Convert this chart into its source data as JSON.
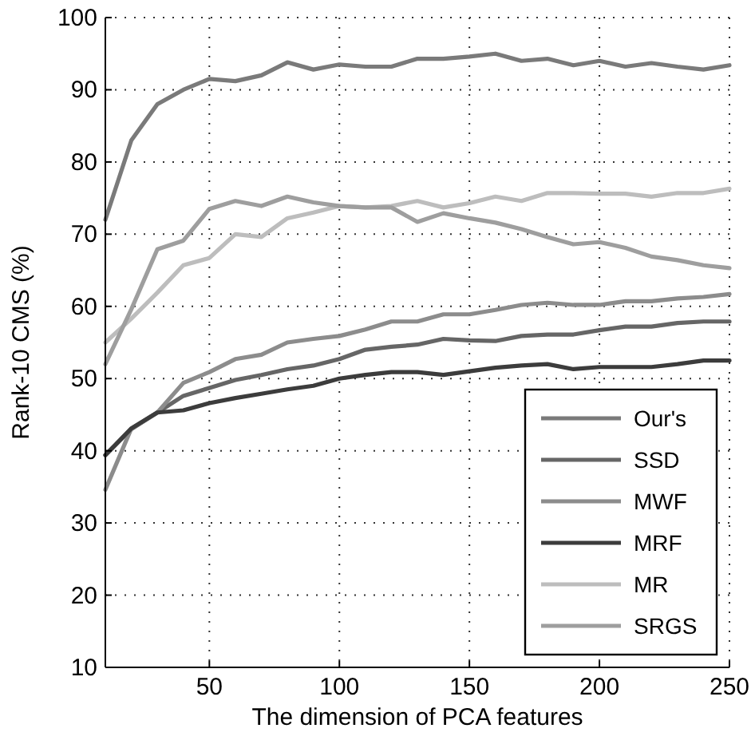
{
  "chart_data": {
    "type": "line",
    "xlabel": "The dimension of PCA features",
    "ylabel": "Rank-10 CMS (%)",
    "x": [
      10,
      20,
      30,
      40,
      50,
      60,
      70,
      80,
      90,
      100,
      110,
      120,
      130,
      140,
      150,
      160,
      170,
      180,
      190,
      200,
      210,
      220,
      230,
      240,
      250
    ],
    "xlim": [
      10,
      250
    ],
    "xticks": [
      50,
      100,
      150,
      200,
      250
    ],
    "ylim": [
      10,
      100
    ],
    "yticks": [
      10,
      20,
      30,
      40,
      50,
      60,
      70,
      80,
      90,
      100
    ],
    "grid": true,
    "legend": "bottom right",
    "line_style": "solid",
    "marker": "none",
    "series": [
      {
        "name": "Our's",
        "color": "#7a7a7a",
        "values": [
          72,
          83,
          88,
          90,
          91.5,
          91.2,
          92,
          93.8,
          92.8,
          93.5,
          93.2,
          93.2,
          94.3,
          94.3,
          94.6,
          95,
          94,
          94.3,
          93.4,
          94,
          93.2,
          93.7,
          93.2,
          92.8,
          93.4
        ]
      },
      {
        "name": "SSD",
        "color": "#666666",
        "values": [
          39.4,
          43,
          45.3,
          47.6,
          48.7,
          49.8,
          50.5,
          51.3,
          51.8,
          52.7,
          54,
          54.4,
          54.7,
          55.5,
          55.3,
          55.2,
          55.9,
          56.1,
          56.1,
          56.7,
          57.2,
          57.2,
          57.7,
          57.9,
          57.9
        ]
      },
      {
        "name": "MWF",
        "color": "#8c8c8c",
        "values": [
          34.6,
          43.1,
          45.3,
          49.4,
          50.9,
          52.7,
          53.3,
          55,
          55.5,
          55.9,
          56.8,
          57.9,
          57.9,
          58.9,
          58.9,
          59.5,
          60.2,
          60.5,
          60.2,
          60.2,
          60.7,
          60.7,
          61.1,
          61.3,
          61.7
        ]
      },
      {
        "name": "MRF",
        "color": "#3c3c3c",
        "values": [
          39.4,
          43.1,
          45.3,
          45.6,
          46.6,
          47.3,
          47.9,
          48.5,
          49,
          50,
          50.5,
          50.9,
          50.9,
          50.5,
          51,
          51.5,
          51.8,
          52,
          51.3,
          51.6,
          51.6,
          51.6,
          52,
          52.5,
          52.5
        ]
      },
      {
        "name": "MR",
        "color": "#bdbdbd",
        "values": [
          55,
          58.3,
          61.9,
          65.7,
          66.7,
          70,
          69.6,
          72.2,
          73,
          73.9,
          73.7,
          73.9,
          74.6,
          73.7,
          74.3,
          75.2,
          74.6,
          75.7,
          75.7,
          75.6,
          75.6,
          75.2,
          75.7,
          75.7,
          76.3
        ]
      },
      {
        "name": "SRGS",
        "color": "#9e9e9e",
        "values": [
          52,
          59.6,
          67.9,
          69.1,
          73.5,
          74.6,
          73.9,
          75.2,
          74.4,
          73.9,
          73.7,
          73.7,
          71.7,
          72.9,
          72.2,
          71.6,
          70.7,
          69.6,
          68.6,
          68.9,
          68.1,
          66.9,
          66.4,
          65.7,
          65.3
        ]
      }
    ]
  }
}
